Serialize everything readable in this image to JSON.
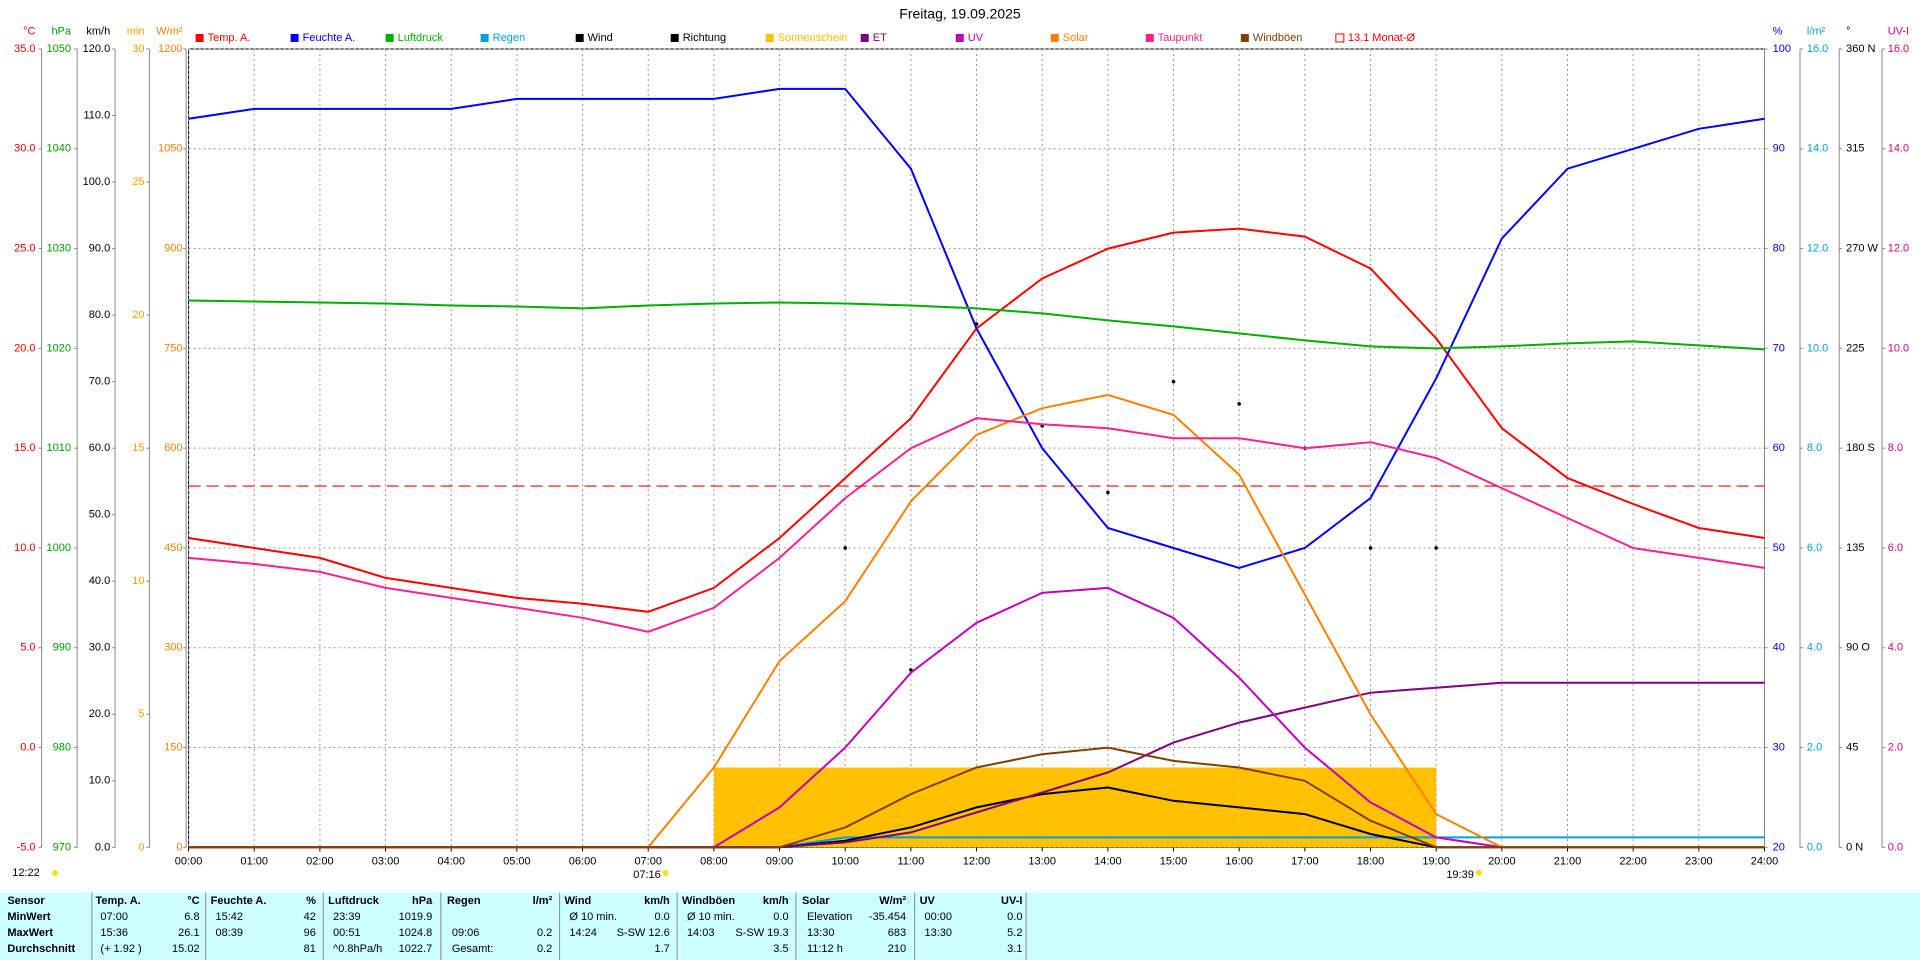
{
  "chart_data": {
    "type": "line",
    "title": "Freitag, 19.09.2025",
    "grid": true,
    "x": [
      0,
      1,
      2,
      3,
      4,
      5,
      6,
      7,
      8,
      9,
      10,
      11,
      12,
      13,
      14,
      15,
      16,
      17,
      18,
      19,
      20,
      21,
      22,
      23,
      24
    ],
    "xlim": [
      0,
      24
    ],
    "xticks": [
      {
        "value": 0,
        "label": "00:00"
      },
      {
        "value": 1,
        "label": "01:00"
      },
      {
        "value": 2,
        "label": "02:00"
      },
      {
        "value": 3,
        "label": "03:00"
      },
      {
        "value": 4,
        "label": "04:00"
      },
      {
        "value": 5,
        "label": "05:00"
      },
      {
        "value": 6,
        "label": "06:00"
      },
      {
        "value": 7,
        "label": "07:00"
      },
      {
        "value": 8,
        "label": "08:00"
      },
      {
        "value": 9,
        "label": "09:00"
      },
      {
        "value": 10,
        "label": "10:00"
      },
      {
        "value": 11,
        "label": "11:00"
      },
      {
        "value": 12,
        "label": "12:00"
      },
      {
        "value": 13,
        "label": "13:00"
      },
      {
        "value": 14,
        "label": "14:00"
      },
      {
        "value": 15,
        "label": "15:00"
      },
      {
        "value": 16,
        "label": "16:00"
      },
      {
        "value": 17,
        "label": "17:00"
      },
      {
        "value": 18,
        "label": "18:00"
      },
      {
        "value": 19,
        "label": "19:00"
      },
      {
        "value": 20,
        "label": "20:00"
      },
      {
        "value": 21,
        "label": "21:00"
      },
      {
        "value": 22,
        "label": "22:00"
      },
      {
        "value": 23,
        "label": "23:00"
      },
      {
        "value": 24,
        "label": "24:00"
      }
    ],
    "axes": [
      {
        "unit": "°C",
        "side": "left",
        "color": "#ff0000",
        "lim": [
          -5,
          35
        ],
        "ticks": [
          {
            "value": -5,
            "label": "-5.0"
          },
          {
            "value": 0,
            "label": "0.0"
          },
          {
            "value": 5,
            "label": "5.0"
          },
          {
            "value": 10,
            "label": "10.0"
          },
          {
            "value": 15,
            "label": "15.0"
          },
          {
            "value": 20,
            "label": "20.0"
          },
          {
            "value": 25,
            "label": "25.0"
          },
          {
            "value": 30,
            "label": "30.0"
          },
          {
            "value": 35,
            "label": "35.0"
          }
        ]
      },
      {
        "unit": "hPa",
        "side": "left",
        "color": "#00a000",
        "lim": [
          970,
          1050
        ],
        "ticks": [
          970,
          980,
          990,
          1000,
          1010,
          1020,
          1030,
          1040,
          1050
        ]
      },
      {
        "unit": "km/h",
        "side": "left",
        "color": "#000000",
        "lim": [
          0,
          120
        ],
        "ticks": [
          {
            "value": 0,
            "label": "0.0"
          },
          {
            "value": 10,
            "label": "10.0"
          },
          {
            "value": 20,
            "label": "20.0"
          },
          {
            "value": 30,
            "label": "30.0"
          },
          {
            "value": 40,
            "label": "40.0"
          },
          {
            "value": 50,
            "label": "50.0"
          },
          {
            "value": 60,
            "label": "60.0"
          },
          {
            "value": 70,
            "label": "70.0"
          },
          {
            "value": 80,
            "label": "80.0"
          },
          {
            "value": 90,
            "label": "90.0"
          },
          {
            "value": 100,
            "label": "100.0"
          },
          {
            "value": 110,
            "label": "110.0"
          },
          {
            "value": 120,
            "label": "120.0"
          }
        ]
      },
      {
        "unit": "min",
        "side": "left",
        "color": "#ffa000",
        "lim": [
          0,
          30
        ],
        "ticks": [
          0,
          5,
          10,
          15,
          20,
          25,
          30
        ]
      },
      {
        "unit": "W/m²",
        "side": "left",
        "color": "#ff8000",
        "lim": [
          0,
          1200
        ],
        "ticks": [
          0,
          150,
          300,
          450,
          600,
          750,
          900,
          1050,
          1200
        ]
      },
      {
        "unit": "%",
        "side": "right",
        "color": "#0000ff",
        "lim": [
          20,
          100
        ],
        "ticks": [
          20,
          30,
          40,
          50,
          60,
          70,
          80,
          90,
          100
        ]
      },
      {
        "unit": "l/m²",
        "side": "right",
        "color": "#00a0e0",
        "lim": [
          0,
          16
        ],
        "ticks": [
          {
            "value": 0,
            "label": "0.0"
          },
          {
            "value": 2,
            "label": "2.0"
          },
          {
            "value": 4,
            "label": "4.0"
          },
          {
            "value": 6,
            "label": "6.0"
          },
          {
            "value": 8,
            "label": "8.0"
          },
          {
            "value": 10,
            "label": "10.0"
          },
          {
            "value": 12,
            "label": "12.0"
          },
          {
            "value": 14,
            "label": "14.0"
          },
          {
            "value": 16,
            "label": "16.0"
          }
        ]
      },
      {
        "unit": "°",
        "side": "right",
        "color": "#000000",
        "lim": [
          0,
          360
        ],
        "ticks": [
          {
            "value": 0,
            "label": "0 N"
          },
          45,
          {
            "value": 90,
            "label": "90 O"
          },
          135,
          {
            "value": 180,
            "label": "180 S"
          },
          225,
          {
            "value": 270,
            "label": "270 W"
          },
          315,
          {
            "value": 360,
            "label": "360 N"
          }
        ]
      },
      {
        "unit": "UV-I",
        "side": "right",
        "color": "#e0007f",
        "lim": [
          0,
          16
        ],
        "ticks": [
          {
            "value": 0,
            "label": "0.0"
          },
          {
            "value": 2,
            "label": "2.0"
          },
          {
            "value": 4,
            "label": "4.0"
          },
          {
            "value": 6,
            "label": "6.0"
          },
          {
            "value": 8,
            "label": "8.0"
          },
          {
            "value": 10,
            "label": "10.0"
          },
          {
            "value": 12,
            "label": "12.0"
          },
          {
            "value": 14,
            "label": "14.0"
          },
          {
            "value": 16,
            "label": "16.0"
          }
        ]
      }
    ],
    "series": [
      {
        "name": "Temp. A.",
        "color": "#ff0000",
        "axis": 0,
        "kind": "line",
        "values": [
          10.5,
          10.0,
          9.5,
          8.5,
          8.0,
          7.5,
          7.2,
          6.8,
          8.0,
          10.5,
          13.5,
          16.5,
          21.0,
          23.5,
          25.0,
          25.8,
          26.0,
          25.6,
          24.0,
          20.5,
          16.0,
          13.5,
          12.2,
          11.0,
          10.5
        ]
      },
      {
        "name": "Feuchte A.",
        "color": "#0000ff",
        "axis": 5,
        "kind": "line",
        "values": [
          93,
          94,
          94,
          94,
          94,
          95,
          95,
          95,
          95,
          96,
          96,
          88,
          72,
          60,
          52,
          50,
          48,
          50,
          55,
          67,
          81,
          88,
          90,
          92,
          93
        ]
      },
      {
        "name": "Luftdruck",
        "color": "#00b000",
        "axis": 1,
        "kind": "line",
        "values": [
          1024.8,
          1024.7,
          1024.6,
          1024.5,
          1024.3,
          1024.2,
          1024.0,
          1024.3,
          1024.5,
          1024.6,
          1024.5,
          1024.3,
          1024.0,
          1023.5,
          1022.8,
          1022.2,
          1021.5,
          1020.8,
          1020.2,
          1020.0,
          1020.2,
          1020.5,
          1020.7,
          1020.3,
          1019.9
        ]
      },
      {
        "name": "Regen",
        "color": "#00a0e0",
        "axis": 6,
        "kind": "line",
        "values": [
          0,
          0,
          0,
          0,
          0,
          0,
          0,
          0,
          0,
          0,
          0.2,
          0.2,
          0.2,
          0.2,
          0.2,
          0.2,
          0.2,
          0.2,
          0.2,
          0.2,
          0.2,
          0.2,
          0.2,
          0.2,
          0.2
        ]
      },
      {
        "name": "Wind",
        "color": "#000000",
        "axis": 2,
        "kind": "line",
        "values": [
          0,
          0,
          0,
          0,
          0,
          0,
          0,
          0,
          0,
          0,
          1,
          3,
          6,
          8,
          9,
          7,
          6,
          5,
          2,
          0,
          0,
          0,
          0,
          0,
          0
        ]
      },
      {
        "name": "Richtung",
        "color": "#000000",
        "axis": 7,
        "kind": "dots",
        "values": [
          null,
          null,
          null,
          null,
          null,
          null,
          null,
          null,
          null,
          null,
          135,
          80,
          236,
          190,
          160,
          210,
          200,
          180,
          135,
          135,
          null,
          null,
          null,
          null,
          null
        ]
      },
      {
        "name": "Sonnenschein",
        "color": "#ffc000",
        "axis": 3,
        "kind": "bar",
        "values": [
          0,
          0,
          0,
          0,
          0,
          0,
          0,
          0,
          3,
          3,
          3,
          3,
          3,
          3,
          3,
          3,
          3,
          3,
          3,
          0,
          0,
          0,
          0,
          0,
          0
        ]
      },
      {
        "name": "ET",
        "color": "#800080",
        "axis": 6,
        "kind": "line",
        "values": [
          0,
          0,
          0,
          0,
          0,
          0,
          0,
          0,
          0,
          0,
          0.1,
          0.3,
          0.7,
          1.1,
          1.5,
          2.1,
          2.5,
          2.8,
          3.1,
          3.2,
          3.3,
          3.3,
          3.3,
          3.3,
          3.3
        ]
      },
      {
        "name": "UV",
        "color": "#c000c0",
        "axis": 8,
        "kind": "line",
        "values": [
          0,
          0,
          0,
          0,
          0,
          0,
          0,
          0,
          0,
          0.8,
          2.0,
          3.5,
          4.5,
          5.1,
          5.2,
          4.6,
          3.4,
          2.0,
          0.9,
          0.2,
          0,
          0,
          0,
          0,
          0
        ]
      },
      {
        "name": "Solar",
        "color": "#ff8000",
        "axis": 4,
        "kind": "line",
        "values": [
          0,
          0,
          0,
          0,
          0,
          0,
          0,
          0,
          120,
          280,
          370,
          520,
          620,
          660,
          680,
          650,
          560,
          380,
          200,
          50,
          0,
          0,
          0,
          0,
          0
        ]
      },
      {
        "name": "Taupunkt",
        "color": "#ff2090",
        "axis": 0,
        "kind": "line",
        "values": [
          9.5,
          9.2,
          8.8,
          8.0,
          7.5,
          7.0,
          6.5,
          5.8,
          7.0,
          9.5,
          12.5,
          15.0,
          16.5,
          16.2,
          16.0,
          15.5,
          15.5,
          15.0,
          15.3,
          14.5,
          13.0,
          11.5,
          10.0,
          9.5,
          9.0
        ]
      },
      {
        "name": "Windböen",
        "color": "#804000",
        "axis": 2,
        "kind": "line",
        "values": [
          0,
          0,
          0,
          0,
          0,
          0,
          0,
          0,
          0,
          0,
          3,
          8,
          12,
          14,
          15,
          13,
          12,
          10,
          4,
          0,
          0,
          0,
          0,
          0,
          0
        ]
      },
      {
        "name": "13.1 Monat-Ø",
        "color": "#ff0000",
        "axis": 0,
        "kind": "hline",
        "value": 13.1
      }
    ],
    "day_length": "12:22",
    "sun": [
      {
        "value": 7.267,
        "label": "07:16"
      },
      {
        "value": 19.65,
        "label": "19:39"
      }
    ]
  },
  "table": {
    "columns": [
      {
        "name": "Sensor"
      },
      {
        "name": "Temp. A.",
        "unit": "°C"
      },
      {
        "name": "Feuchte A.",
        "unit": "%"
      },
      {
        "name": "Luftdruck",
        "unit": "hPa"
      },
      {
        "name": "Regen",
        "unit": "l/m²"
      },
      {
        "name": "Wind",
        "unit": "km/h"
      },
      {
        "name": "Windböen",
        "unit": "km/h"
      },
      {
        "name": "Solar",
        "unit": "W/m²"
      },
      {
        "name": "UV",
        "unit": "UV-I"
      }
    ],
    "rows": [
      {
        "label": "MinWert",
        "cells": [
          [
            "07:00",
            "6.8"
          ],
          [
            "15:42",
            "42"
          ],
          [
            "23:39",
            "1019.9"
          ],
          [
            null,
            null
          ],
          [
            "Ø 10 min.",
            "0.0"
          ],
          [
            "Ø 10 min.",
            "0.0"
          ],
          [
            "Elevation",
            "-35.454"
          ],
          [
            "00:00",
            "0.0"
          ]
        ]
      },
      {
        "label": "MaxWert",
        "cells": [
          [
            "15:36",
            "26.1"
          ],
          [
            "08:39",
            "96"
          ],
          [
            "00:51",
            "1024.8"
          ],
          [
            "09:06",
            "0.2"
          ],
          [
            "14:24",
            "S-SW 12.6"
          ],
          [
            "14:03",
            "S-SW 19.3"
          ],
          [
            "13:30",
            "683"
          ],
          [
            "13:30",
            "5.2"
          ]
        ]
      },
      {
        "label": "Durchschnitt",
        "cells": [
          [
            "(+ 1.92 )",
            "15.02"
          ],
          [
            null,
            "81"
          ],
          [
            "^0.8hPa/h",
            "1022.7"
          ],
          [
            "Gesamt:",
            "0.2"
          ],
          [
            null,
            "1.7"
          ],
          [
            null,
            "3.5"
          ],
          [
            "11:12 h",
            "210"
          ],
          [
            null,
            "3.1"
          ]
        ]
      }
    ]
  }
}
